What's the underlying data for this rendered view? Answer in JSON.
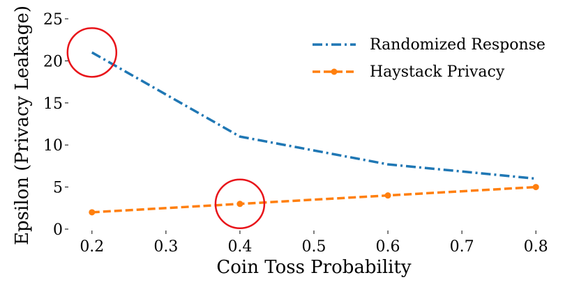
{
  "chart_data": {
    "type": "line",
    "xlabel": "Coin Toss Probability",
    "ylabel": "Epsilon (Privacy Leakage)",
    "xlim": [
      0.17,
      0.83
    ],
    "ylim": [
      0,
      25
    ],
    "xticks": [
      "0.2",
      "0.3",
      "0.4",
      "0.5",
      "0.6",
      "0.7",
      "0.8"
    ],
    "yticks": [
      "0",
      "5",
      "10",
      "15",
      "20",
      "25"
    ],
    "grid": false,
    "legend_position": "top-right",
    "series": [
      {
        "name": "Randomized Response",
        "color": "#1f77b4",
        "style": "dash-dot",
        "markers": false,
        "x": [
          0.2,
          0.4,
          0.6,
          0.8
        ],
        "y": [
          21,
          11,
          7.7,
          6
        ]
      },
      {
        "name": "Haystack Privacy",
        "color": "#ff7f0e",
        "style": "dashed",
        "markers": true,
        "x": [
          0.2,
          0.4,
          0.6,
          0.8
        ],
        "y": [
          2,
          3,
          4,
          5
        ]
      }
    ],
    "annotations": [
      {
        "type": "circle",
        "color": "#e8141a",
        "x": 0.2,
        "y": 21
      },
      {
        "type": "circle",
        "color": "#e8141a",
        "x": 0.4,
        "y": 3
      }
    ]
  }
}
